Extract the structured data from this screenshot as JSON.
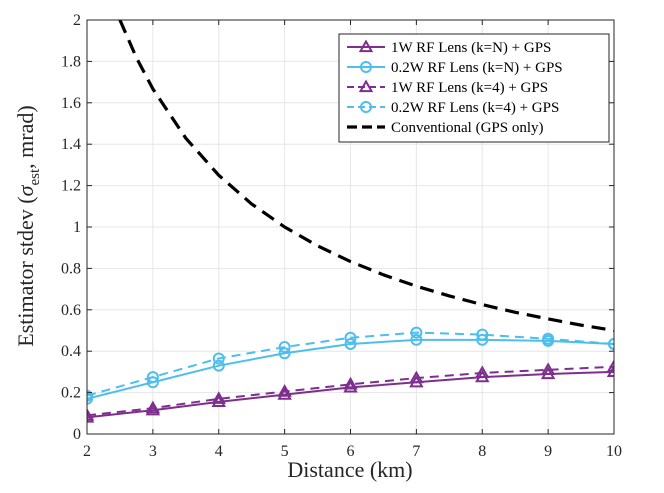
{
  "chart_data": {
    "type": "line",
    "title": "",
    "xlabel": "Distance (km)",
    "ylabel_prefix": "Estimator stdev (",
    "ylabel_sigma": "σ",
    "ylabel_sub": "est",
    "ylabel_suffix": ", mrad)",
    "xlim": [
      2,
      10
    ],
    "ylim": [
      0,
      2
    ],
    "xticks": [
      2,
      3,
      4,
      5,
      6,
      7,
      8,
      9,
      10
    ],
    "yticks": [
      0,
      0.2,
      0.4,
      0.6,
      0.8,
      1,
      1.2,
      1.4,
      1.6,
      1.8,
      2
    ],
    "grid": true,
    "legend_position": "top-right",
    "x": [
      2,
      3,
      4,
      5,
      6,
      7,
      8,
      9,
      10
    ],
    "series": [
      {
        "name": "1W RF Lens (k=N) + GPS",
        "values": [
          0.08,
          0.115,
          0.155,
          0.19,
          0.225,
          0.25,
          0.275,
          0.29,
          0.3
        ],
        "color": "#7E2F8E",
        "dash": "solid",
        "marker": "triangle"
      },
      {
        "name": "0.2W RF Lens (k=N) + GPS",
        "values": [
          0.17,
          0.25,
          0.33,
          0.39,
          0.435,
          0.455,
          0.455,
          0.45,
          0.435
        ],
        "color": "#4DBEEE",
        "dash": "solid",
        "marker": "circle"
      },
      {
        "name": "1W RF Lens (k=4) + GPS",
        "values": [
          0.09,
          0.125,
          0.17,
          0.205,
          0.24,
          0.27,
          0.295,
          0.31,
          0.325
        ],
        "color": "#7E2F8E",
        "dash": "dashed",
        "marker": "triangle"
      },
      {
        "name": "0.2W RF Lens (k=4) + GPS",
        "values": [
          0.185,
          0.275,
          0.365,
          0.42,
          0.465,
          0.49,
          0.48,
          0.46,
          0.435
        ],
        "color": "#4DBEEE",
        "dash": "dashed",
        "marker": "circle"
      },
      {
        "name": "Conventional (GPS only)",
        "x": [
          2.5,
          2.75,
          3,
          3.5,
          4,
          4.5,
          5,
          5.5,
          6,
          6.5,
          7,
          7.5,
          8,
          8.5,
          9,
          9.5,
          10
        ],
        "values": [
          2.0,
          1.818,
          1.667,
          1.429,
          1.25,
          1.111,
          1.0,
          0.909,
          0.833,
          0.769,
          0.714,
          0.667,
          0.625,
          0.588,
          0.556,
          0.526,
          0.5
        ],
        "color": "#000000",
        "dash": "dashed",
        "marker": "none"
      }
    ]
  }
}
